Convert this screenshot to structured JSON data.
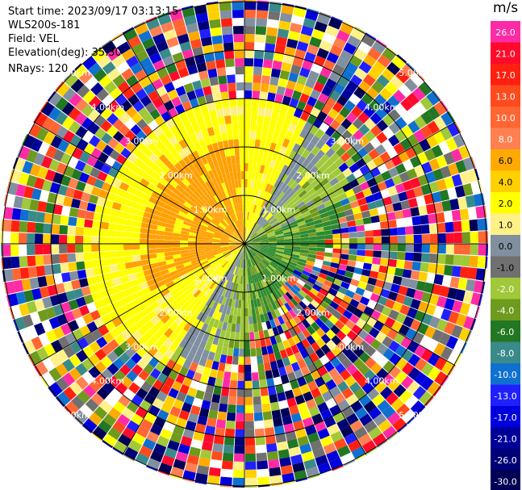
{
  "info": {
    "start_time": "Start time: 2023/09/17 03:13:15",
    "instrument": "WLS200s-181",
    "field": "Field: VEL",
    "elevation": "Elevation(deg): 35.30",
    "nrays": "NRays: 120"
  },
  "chart_data": {
    "type": "heatmap",
    "projection": "polar PPI",
    "field": "VEL",
    "n_rays": 120,
    "range_rings_km": [
      1,
      2,
      3,
      4,
      5
    ],
    "ring_labels": [
      "1.00km",
      "2.00km",
      "3.00km",
      "4.00km",
      "5.00km"
    ],
    "colorbar": {
      "unit": "m/s",
      "ticks": [
        "26.0",
        "21.0",
        "17.0",
        "13.0",
        "10.0",
        "8.0",
        "6.0",
        "4.0",
        "2.0",
        "1.0",
        "0.0",
        "-1.0",
        "-2.0",
        "-4.0",
        "-6.0",
        "-8.0",
        "-10.0",
        "-13.0",
        "-17.0",
        "-21.0",
        "-26.0",
        "-30.0"
      ],
      "colors": [
        "#ff2aa6",
        "#ff0a2a",
        "#ff2010",
        "#ff4a1e",
        "#ff6633",
        "#ff8050",
        "#ffaa00",
        "#ffd000",
        "#ffff00",
        "#fff088",
        "#8090a0",
        "#707070",
        "#a0c838",
        "#6e9a1e",
        "#227722",
        "#3a8a8a",
        "#1070d0",
        "#2020ff",
        "#0000dd",
        "#000099",
        "#000077",
        "#000055"
      ]
    },
    "palette": {
      "pos_high": "#ffa000",
      "pos_mid": "#ffff00",
      "pos_light": "#fff080",
      "zero": "#7f8fa0",
      "neg_light": "#a0c838",
      "neg_mid": "#6e9a1e",
      "neg_high": "#2e8a2e"
    }
  }
}
